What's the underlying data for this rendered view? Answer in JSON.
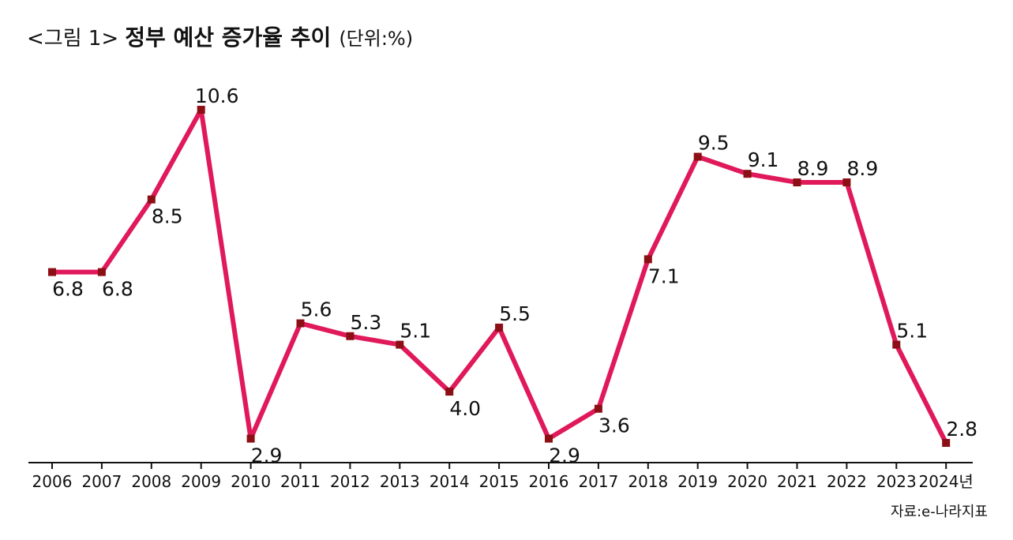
{
  "header": {
    "prefix": "<그림 1>",
    "title": "정부 예산 증가율 추이",
    "unit": "(단위:%)"
  },
  "source": "자료:e-나라지표",
  "colors": {
    "line": "#e0195a",
    "marker": "#8b0f14",
    "axis": "#111111",
    "text": "#111111"
  },
  "chart_data": {
    "type": "line",
    "title": "정부 예산 증가율 추이",
    "unit_label": "(단위:%)",
    "xlabel": "",
    "ylabel": "",
    "categories": [
      "2006",
      "2007",
      "2008",
      "2009",
      "2010",
      "2011",
      "2012",
      "2013",
      "2014",
      "2015",
      "2016",
      "2017",
      "2018",
      "2019",
      "2020",
      "2021",
      "2022",
      "2023",
      "2024년"
    ],
    "series": [
      {
        "name": "정부 예산 증가율",
        "values": [
          6.8,
          6.8,
          8.5,
          10.6,
          2.9,
          5.6,
          5.3,
          5.1,
          4.0,
          5.5,
          2.9,
          3.6,
          7.1,
          9.5,
          9.1,
          8.9,
          8.9,
          5.1,
          2.8
        ]
      }
    ],
    "data_labels": [
      "6.8",
      "6.8",
      "8.5",
      "10.6",
      "2.9",
      "5.6",
      "5.3",
      "5.1",
      "4.0",
      "5.5",
      "2.9",
      "3.6",
      "7.1",
      "9.5",
      "9.1",
      "8.9",
      "8.9",
      "5.1",
      "2.8"
    ],
    "label_positions": [
      "below",
      "below",
      "below",
      "above",
      "below",
      "above",
      "above",
      "above",
      "below",
      "above",
      "below",
      "below",
      "below",
      "above",
      "above",
      "above",
      "above",
      "above",
      "above"
    ],
    "ylim": [
      0,
      11
    ],
    "grid": false,
    "legend": "none"
  }
}
